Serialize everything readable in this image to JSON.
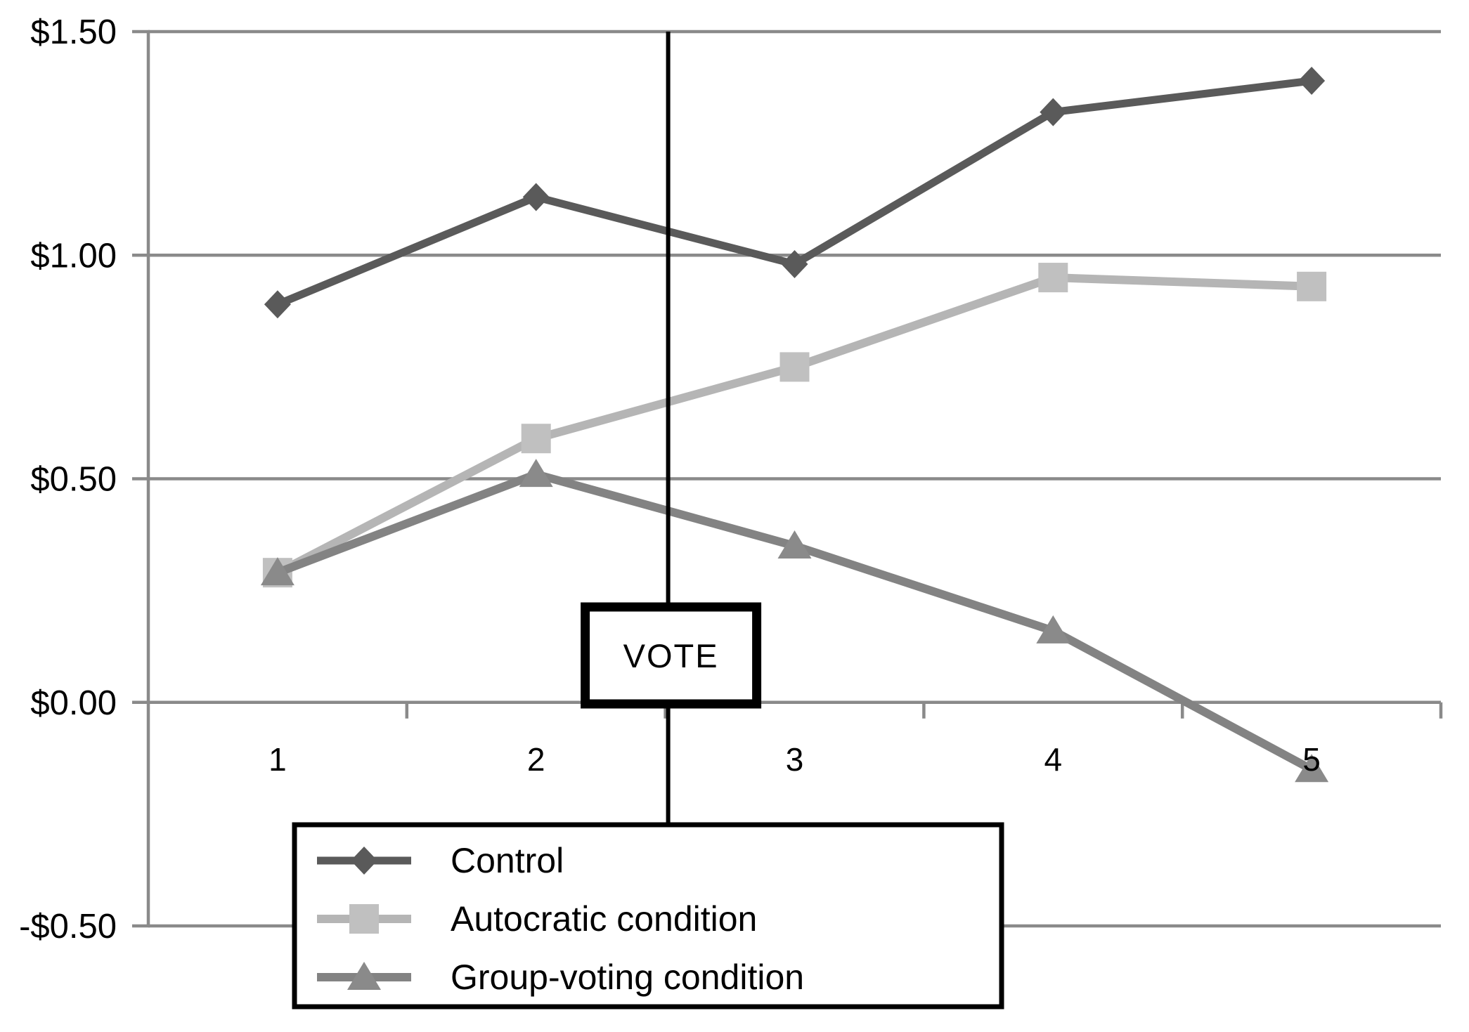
{
  "chart_data": {
    "type": "line",
    "title": "",
    "categories": [
      "1",
      "2",
      "3",
      "4",
      "5"
    ],
    "series": [
      {
        "name": "Control",
        "marker": "diamond",
        "color": "#5a5a5a",
        "marker_color": "#5a5a5a",
        "values": [
          0.89,
          1.13,
          0.98,
          1.32,
          1.39
        ]
      },
      {
        "name": "Autocratic condition",
        "marker": "square",
        "color": "#b5b5b5",
        "marker_color": "#c0c0c0",
        "values": [
          0.29,
          0.59,
          0.75,
          0.95,
          0.93
        ]
      },
      {
        "name": "Group-voting condition",
        "marker": "triangle",
        "color": "#838383",
        "marker_color": "#8a8a8a",
        "values": [
          0.29,
          0.51,
          0.35,
          0.16,
          -0.15
        ]
      }
    ],
    "ylim": [
      -0.5,
      1.5
    ],
    "yticks": [
      {
        "value": 1.5,
        "label": "$1.50"
      },
      {
        "value": 1.0,
        "label": "$1.00"
      },
      {
        "value": 0.5,
        "label": "$0.50"
      },
      {
        "value": 0.0,
        "label": "$0.00"
      },
      {
        "value": -0.5,
        "label": "-$0.50"
      }
    ],
    "grid": true,
    "axis_color": "#8a8a8a",
    "text_color": "#000000",
    "legend_position": "bottom-left",
    "annotation": {
      "label": "VOTE",
      "between_categories": [
        "2",
        "3"
      ],
      "line_color": "#000000",
      "box_border_color": "#000000",
      "box_fill": "#ffffff"
    }
  }
}
